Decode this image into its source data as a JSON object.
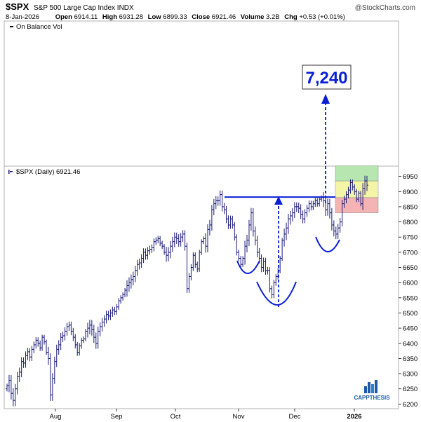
{
  "header": {
    "symbol": "$SPX",
    "name": "S&P 500 Large Cap Index",
    "exchange": "INDX",
    "watermark": "@StockCharts.com",
    "date": "8-Jan-2026",
    "open_label": "Open",
    "open": "6914.11",
    "high_label": "High",
    "high": "6931.28",
    "low_label": "Low",
    "low": "6899.33",
    "close_label": "Close",
    "close": "6921.46",
    "volume_label": "Volume",
    "volume": "3.2B",
    "chg_label": "Chg",
    "chg": "+0.53 (+0.01%)"
  },
  "indicator_panel": {
    "legend": "On Balance Vol"
  },
  "price_panel": {
    "legend": "$SPX (Daily) 6921.46"
  },
  "target_label": "7,240",
  "logo_text": "CAPPTHESIS",
  "colors": {
    "bars": "#1a1a7a",
    "annotation": "#0a1fd4",
    "green_zone": "#b8e6b0",
    "yellow_zone": "#f5f5a8",
    "red_zone": "#f4b4b4"
  },
  "chart_data": {
    "type": "ohlc",
    "title": "$SPX (Daily) 6921.46",
    "ylim": [
      6180,
      7000
    ],
    "yticks": [
      6200,
      6250,
      6300,
      6350,
      6400,
      6450,
      6500,
      6550,
      6600,
      6650,
      6700,
      6750,
      6800,
      6850,
      6900,
      6950
    ],
    "x_axis_labels": [
      "Aug",
      "Sep",
      "Oct",
      "Nov",
      "Dec",
      "2026"
    ],
    "resistance_level": 6882,
    "target_value": 7240,
    "zones": [
      {
        "name": "green",
        "from": 6935,
        "to": 6985
      },
      {
        "name": "yellow",
        "from": 6880,
        "to": 6935
      },
      {
        "name": "red",
        "from": 6830,
        "to": 6880
      }
    ],
    "closes": [
      6260,
      6278,
      6235,
      6212,
      6250,
      6290,
      6305,
      6340,
      6335,
      6360,
      6372,
      6355,
      6380,
      6395,
      6410,
      6400,
      6385,
      6420,
      6405,
      6370,
      6350,
      6230,
      6285,
      6340,
      6380,
      6395,
      6420,
      6425,
      6440,
      6455,
      6460,
      6440,
      6420,
      6395,
      6370,
      6392,
      6410,
      6415,
      6440,
      6450,
      6460,
      6445,
      6420,
      6400,
      6440,
      6455,
      6470,
      6480,
      6495,
      6490,
      6500,
      6510,
      6505,
      6520,
      6540,
      6550,
      6560,
      6575,
      6590,
      6600,
      6610,
      6620,
      6640,
      6660,
      6665,
      6680,
      6700,
      6690,
      6705,
      6710,
      6715,
      6735,
      6740,
      6745,
      6730,
      6720,
      6700,
      6690,
      6700,
      6720,
      6735,
      6750,
      6745,
      6735,
      6750,
      6760,
      6720,
      6580,
      6620,
      6650,
      6690,
      6660,
      6645,
      6700,
      6735,
      6745,
      6720,
      6775,
      6790,
      6840,
      6860,
      6870,
      6870,
      6890,
      6850,
      6840,
      6810,
      6790,
      6810,
      6790,
      6750,
      6700,
      6680,
      6660,
      6680,
      6720,
      6740,
      6790,
      6830,
      6770,
      6740,
      6700,
      6680,
      6650,
      6670,
      6640,
      6640,
      6580,
      6560,
      6600,
      6620,
      6640,
      6680,
      6740,
      6760,
      6780,
      6810,
      6820,
      6830,
      6850,
      6850,
      6845,
      6825,
      6810,
      6830,
      6845,
      6860,
      6850,
      6860,
      6870,
      6860,
      6875,
      6880,
      6870,
      6840,
      6860,
      6830,
      6790,
      6770,
      6760,
      6780,
      6800,
      6860,
      6875,
      6890,
      6905,
      6930,
      6915,
      6900,
      6875,
      6895,
      6860,
      6910,
      6935,
      6921
    ]
  }
}
